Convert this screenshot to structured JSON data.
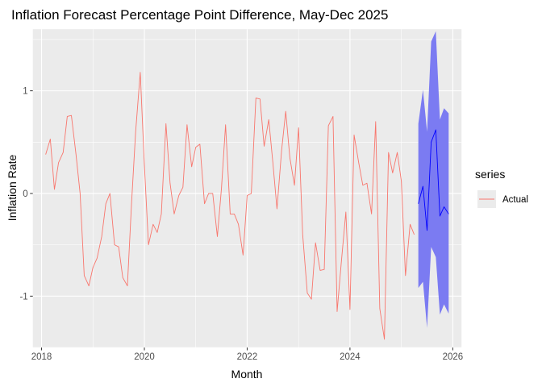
{
  "chart_data": {
    "type": "line",
    "title": "Inflation Forecast Percentage Point Difference, May-Dec 2025",
    "xlabel": "Month",
    "ylabel": "Inflation Rate",
    "xlim": [
      2017.83,
      2026.17
    ],
    "ylim": [
      -1.5,
      1.6
    ],
    "x_ticks": [
      2018,
      2020,
      2022,
      2024,
      2026
    ],
    "y_ticks": [
      -1,
      0,
      1
    ],
    "grid": true,
    "legend": {
      "title": "series",
      "position": "right",
      "entries": [
        "Actual"
      ]
    },
    "colors": {
      "panel": "#ebebeb",
      "grid_major": "#ffffff",
      "actual_line": "#f8766d",
      "forecast_line": "#0000ff",
      "forecast_band": "#7b7bf2",
      "legend_key": "#ebebeb"
    },
    "series": [
      {
        "name": "Actual",
        "x": [
          2018.08,
          2018.17,
          2018.25,
          2018.33,
          2018.42,
          2018.5,
          2018.58,
          2018.67,
          2018.75,
          2018.83,
          2018.92,
          2019.0,
          2019.08,
          2019.17,
          2019.25,
          2019.33,
          2019.42,
          2019.5,
          2019.58,
          2019.67,
          2019.75,
          2019.83,
          2019.92,
          2020.0,
          2020.08,
          2020.17,
          2020.25,
          2020.33,
          2020.42,
          2020.5,
          2020.58,
          2020.67,
          2020.75,
          2020.83,
          2020.92,
          2021.0,
          2021.08,
          2021.17,
          2021.25,
          2021.33,
          2021.42,
          2021.5,
          2021.58,
          2021.67,
          2021.75,
          2021.83,
          2021.92,
          2022.0,
          2022.08,
          2022.17,
          2022.25,
          2022.33,
          2022.42,
          2022.5,
          2022.58,
          2022.67,
          2022.75,
          2022.83,
          2022.92,
          2023.0,
          2023.08,
          2023.17,
          2023.25,
          2023.33,
          2023.42,
          2023.5,
          2023.58,
          2023.67,
          2023.75,
          2023.83,
          2023.92,
          2024.0,
          2024.08,
          2024.17,
          2024.25,
          2024.33,
          2024.42,
          2024.5,
          2024.58,
          2024.67,
          2024.75,
          2024.83,
          2024.92,
          2025.0,
          2025.08,
          2025.17,
          2025.25
        ],
        "values": [
          0.38,
          0.53,
          0.04,
          0.3,
          0.4,
          0.75,
          0.76,
          0.38,
          0.0,
          -0.8,
          -0.9,
          -0.72,
          -0.63,
          -0.42,
          -0.1,
          0.0,
          -0.5,
          -0.52,
          -0.82,
          -0.9,
          -0.1,
          0.6,
          1.18,
          0.28,
          -0.5,
          -0.3,
          -0.38,
          -0.2,
          0.68,
          0.1,
          -0.2,
          -0.02,
          0.06,
          0.67,
          0.26,
          0.45,
          0.48,
          -0.1,
          0.0,
          0.0,
          -0.42,
          0.05,
          0.67,
          -0.2,
          -0.2,
          -0.3,
          -0.6,
          -0.02,
          0.0,
          0.93,
          0.92,
          0.46,
          0.72,
          0.3,
          -0.15,
          0.42,
          0.8,
          0.35,
          0.08,
          0.64,
          -0.4,
          -0.97,
          -1.03,
          -0.48,
          -0.75,
          -0.74,
          0.66,
          0.75,
          -1.15,
          -0.68,
          -0.18,
          -1.13,
          0.57,
          0.3,
          0.08,
          0.1,
          -0.2,
          0.7,
          -1.12,
          -1.42,
          0.4,
          0.2,
          0.4,
          0.12,
          -0.8,
          -0.3,
          -0.4
        ]
      },
      {
        "name": "",
        "x": [
          2025.33,
          2025.42,
          2025.5,
          2025.58,
          2025.67,
          2025.75,
          2025.83,
          2025.92
        ],
        "values": [
          -0.1,
          0.07,
          -0.36,
          0.5,
          0.62,
          -0.22,
          -0.13,
          -0.2
        ],
        "lower": [
          -0.92,
          -0.86,
          -1.31,
          -0.52,
          -0.62,
          -1.18,
          -1.08,
          -1.17
        ],
        "upper": [
          0.68,
          1.01,
          0.6,
          1.48,
          1.58,
          0.72,
          0.83,
          0.78
        ]
      }
    ]
  }
}
